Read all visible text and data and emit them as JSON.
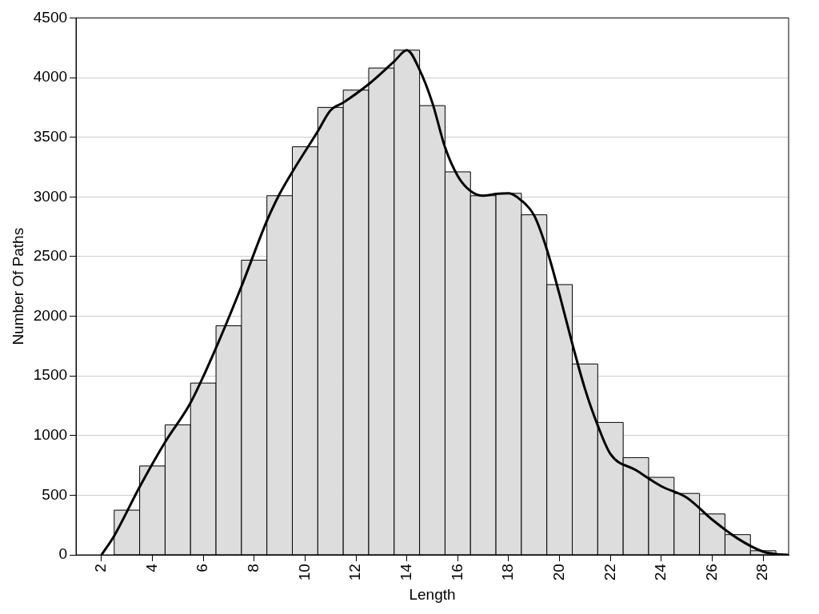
{
  "chart_data": {
    "type": "histogram",
    "xlabel": "Length",
    "ylabel": "Number Of Paths",
    "bins": [
      2.5,
      3.5,
      4.5,
      5.5,
      6.5,
      7.5,
      8.5,
      9.5,
      10.5,
      11.5,
      12.5,
      13.5,
      14.5,
      15.5,
      16.5,
      17.5,
      18.5,
      19.5,
      20.5,
      21.5,
      22.5,
      23.5,
      24.5,
      25.5,
      26.5,
      27.5,
      28.5
    ],
    "values": [
      375,
      745,
      1090,
      1440,
      1920,
      2470,
      3010,
      3420,
      3750,
      3895,
      4080,
      4230,
      3765,
      3210,
      3010,
      3030,
      2850,
      2265,
      1600,
      1110,
      815,
      650,
      515,
      343,
      170,
      35
    ],
    "color": "#dddddd",
    "series": [
      {
        "type": "line",
        "color": "#000000",
        "x": [
          2,
          2.5,
          3.5,
          4.5,
          5.5,
          6.5,
          7.5,
          8.5,
          9,
          9.5,
          10.5,
          11,
          11.5,
          12.5,
          13.5,
          14,
          14.5,
          15,
          15.5,
          16,
          16.5,
          17,
          17.5,
          18,
          18.5,
          19,
          19.5,
          20,
          20.5,
          21,
          21.5,
          22,
          23,
          24,
          25,
          26,
          27,
          28,
          28.5,
          29
        ],
        "values": [
          0,
          160,
          570,
          945,
          1275,
          1735,
          2250,
          2800,
          3025,
          3210,
          3550,
          3725,
          3790,
          3945,
          4135,
          4230,
          4065,
          3790,
          3415,
          3175,
          3050,
          3010,
          3025,
          3030,
          2970,
          2845,
          2560,
          2180,
          1770,
          1390,
          1085,
          845,
          710,
          575,
          480,
          295,
          137,
          27,
          7,
          0
        ]
      }
    ],
    "xlim": [
      1,
      29
    ],
    "xticks": [
      2,
      4,
      6,
      8,
      10,
      12,
      14,
      16,
      18,
      20,
      22,
      24,
      26,
      28
    ],
    "ylim": [
      0,
      4500
    ],
    "yticks": [
      0,
      500,
      1000,
      1500,
      2000,
      2500,
      3000,
      3500,
      4000,
      4500
    ],
    "grid": "y",
    "legend": false,
    "marker": "none",
    "line_style": "solid"
  }
}
